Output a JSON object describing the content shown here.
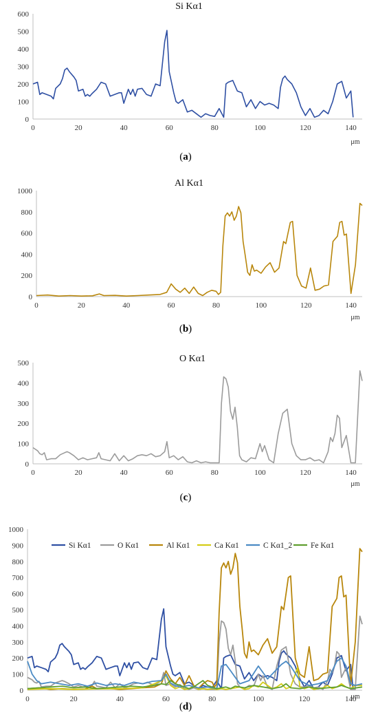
{
  "panels": [
    {
      "caption_letter": "a"
    },
    {
      "caption_letter": "b"
    },
    {
      "caption_letter": "c"
    },
    {
      "caption_letter": "d"
    }
  ],
  "chart_data": [
    {
      "type": "line",
      "title": "Si Kα1",
      "x_unit": "μm",
      "xlim": [
        0,
        145
      ],
      "ylim": [
        0,
        600
      ],
      "xticks": [
        0,
        20,
        40,
        60,
        80,
        100,
        120,
        140
      ],
      "yticks": [
        0,
        100,
        200,
        300,
        400,
        500,
        600
      ],
      "grid": false,
      "series": [
        {
          "color": "#2e4fa3",
          "x": [
            0,
            2,
            3,
            4,
            6,
            8,
            9,
            10,
            12,
            13,
            14,
            15,
            16,
            18,
            19,
            20,
            22,
            23,
            24,
            25,
            26,
            28,
            30,
            32,
            34,
            36,
            38,
            39,
            40,
            42,
            43,
            44,
            45,
            46,
            48,
            50,
            52,
            54,
            56,
            58,
            59,
            60,
            62,
            63,
            64,
            66,
            68,
            70,
            72,
            74,
            76,
            78,
            80,
            82,
            84,
            85,
            86,
            88,
            90,
            92,
            94,
            96,
            98,
            100,
            102,
            104,
            106,
            108,
            109,
            110,
            111,
            112,
            114,
            116,
            118,
            120,
            121,
            122,
            124,
            126,
            128,
            130,
            132,
            134,
            136,
            138,
            140,
            141
          ],
          "y": [
            200,
            210,
            140,
            150,
            140,
            130,
            115,
            175,
            200,
            230,
            280,
            290,
            270,
            240,
            220,
            160,
            170,
            130,
            140,
            130,
            145,
            170,
            210,
            200,
            130,
            140,
            150,
            150,
            90,
            170,
            140,
            170,
            130,
            170,
            175,
            140,
            130,
            200,
            190,
            440,
            505,
            270,
            150,
            100,
            90,
            110,
            40,
            50,
            30,
            10,
            30,
            20,
            15,
            60,
            10,
            200,
            210,
            220,
            160,
            150,
            70,
            110,
            60,
            100,
            80,
            90,
            80,
            60,
            180,
            230,
            245,
            225,
            200,
            150,
            70,
            20,
            40,
            60,
            10,
            20,
            50,
            30,
            100,
            200,
            215,
            120,
            160,
            10
          ]
        }
      ]
    },
    {
      "type": "line",
      "title": "Al Kα1",
      "x_unit": "μm",
      "xlim": [
        0,
        145
      ],
      "ylim": [
        0,
        1000
      ],
      "xticks": [
        0,
        20,
        40,
        60,
        80,
        100,
        120,
        140
      ],
      "yticks": [
        0,
        200,
        400,
        600,
        800,
        1000
      ],
      "grid": false,
      "series": [
        {
          "color": "#b8860b",
          "x": [
            0,
            5,
            10,
            15,
            20,
            25,
            28,
            30,
            35,
            40,
            45,
            50,
            55,
            58,
            60,
            62,
            64,
            66,
            68,
            70,
            72,
            74,
            76,
            78,
            80,
            81,
            82,
            83,
            84,
            85,
            86,
            87,
            88,
            89,
            90,
            91,
            92,
            93,
            94,
            95,
            96,
            97,
            98,
            100,
            102,
            104,
            106,
            108,
            110,
            111,
            112,
            113,
            114,
            116,
            118,
            120,
            122,
            124,
            126,
            128,
            130,
            132,
            134,
            135,
            136,
            137,
            138,
            140,
            142,
            144,
            145
          ],
          "y": [
            10,
            15,
            5,
            10,
            5,
            8,
            25,
            10,
            12,
            5,
            10,
            15,
            20,
            40,
            120,
            70,
            40,
            80,
            30,
            90,
            30,
            10,
            40,
            60,
            50,
            20,
            40,
            480,
            760,
            790,
            760,
            800,
            720,
            760,
            850,
            790,
            520,
            380,
            230,
            200,
            300,
            240,
            250,
            220,
            280,
            320,
            230,
            270,
            520,
            500,
            600,
            700,
            710,
            200,
            100,
            80,
            270,
            60,
            70,
            100,
            110,
            520,
            570,
            700,
            710,
            580,
            590,
            30,
            300,
            880,
            860
          ]
        }
      ]
    },
    {
      "type": "line",
      "title": "O Kα1",
      "x_unit": "μm",
      "xlim": [
        0,
        145
      ],
      "ylim": [
        0,
        500
      ],
      "xticks": [
        0,
        20,
        40,
        60,
        80,
        100,
        120,
        140
      ],
      "yticks": [
        0,
        100,
        200,
        300,
        400,
        500
      ],
      "grid": false,
      "series": [
        {
          "color": "#9b9b9b",
          "x": [
            0,
            2,
            3,
            4,
            5,
            6,
            8,
            10,
            12,
            14,
            15,
            16,
            18,
            20,
            22,
            24,
            26,
            28,
            29,
            30,
            32,
            34,
            36,
            38,
            40,
            42,
            44,
            46,
            48,
            50,
            52,
            54,
            56,
            58,
            59,
            60,
            62,
            64,
            66,
            68,
            70,
            72,
            74,
            76,
            78,
            80,
            82,
            83,
            84,
            85,
            86,
            87,
            88,
            89,
            90,
            91,
            92,
            94,
            96,
            98,
            100,
            101,
            102,
            104,
            106,
            108,
            110,
            111,
            112,
            114,
            116,
            118,
            120,
            122,
            124,
            126,
            128,
            130,
            131,
            132,
            133,
            134,
            135,
            136,
            138,
            140,
            142,
            144,
            145
          ],
          "y": [
            80,
            65,
            50,
            45,
            55,
            20,
            25,
            25,
            45,
            55,
            60,
            55,
            40,
            20,
            30,
            20,
            25,
            30,
            55,
            25,
            20,
            15,
            50,
            15,
            40,
            15,
            25,
            40,
            45,
            40,
            50,
            35,
            40,
            60,
            110,
            30,
            40,
            20,
            35,
            10,
            5,
            15,
            5,
            10,
            5,
            5,
            5,
            300,
            430,
            420,
            380,
            260,
            220,
            280,
            180,
            40,
            20,
            10,
            30,
            25,
            100,
            60,
            90,
            20,
            5,
            150,
            250,
            260,
            270,
            100,
            40,
            20,
            20,
            30,
            15,
            20,
            5,
            60,
            130,
            110,
            150,
            240,
            225,
            80,
            140,
            5,
            5,
            460,
            410
          ]
        }
      ]
    },
    {
      "type": "line",
      "title": "",
      "x_unit": "μm",
      "xlim": [
        0,
        145
      ],
      "ylim": [
        0,
        1000
      ],
      "xticks": [
        0,
        20,
        40,
        60,
        80,
        100,
        120,
        140
      ],
      "yticks": [
        0,
        100,
        200,
        300,
        400,
        500,
        600,
        700,
        800,
        900,
        1000
      ],
      "grid": false,
      "legend": "top",
      "series": [
        {
          "name": "Si Kα1",
          "color": "#2e4fa3",
          "ref": "si"
        },
        {
          "name": "O Kα1",
          "color": "#9b9b9b",
          "ref": "o"
        },
        {
          "name": "Al Kα1",
          "color": "#b8860b",
          "ref": "al"
        },
        {
          "name": "Ca Kα1",
          "color": "#d4cc16",
          "x": [
            0,
            10,
            20,
            30,
            40,
            50,
            55,
            58,
            60,
            62,
            64,
            66,
            68,
            70,
            72,
            74,
            76,
            78,
            80,
            82,
            84,
            86,
            88,
            90,
            92,
            94,
            96,
            98,
            100,
            102,
            104,
            106,
            108,
            110,
            112,
            114,
            116,
            117,
            118,
            120,
            122,
            124,
            126,
            128,
            130,
            132,
            134,
            136,
            138,
            140,
            142,
            145
          ],
          "y": [
            5,
            10,
            5,
            8,
            10,
            15,
            40,
            60,
            90,
            30,
            10,
            20,
            5,
            10,
            25,
            5,
            10,
            5,
            10,
            5,
            10,
            5,
            10,
            15,
            20,
            5,
            10,
            30,
            20,
            50,
            30,
            10,
            20,
            40,
            10,
            20,
            100,
            140,
            20,
            10,
            20,
            5,
            10,
            15,
            30,
            10,
            20,
            40,
            20,
            10,
            30,
            30
          ]
        },
        {
          "name": "C Kα1_2",
          "color": "#4a8ac4",
          "x": [
            0,
            2,
            4,
            6,
            10,
            14,
            18,
            22,
            26,
            30,
            34,
            38,
            42,
            46,
            50,
            54,
            58,
            60,
            62,
            64,
            66,
            70,
            74,
            78,
            82,
            84,
            86,
            88,
            90,
            92,
            96,
            100,
            104,
            108,
            110,
            112,
            114,
            118,
            122,
            126,
            130,
            132,
            134,
            136,
            138,
            140,
            142,
            145
          ],
          "y": [
            180,
            100,
            60,
            40,
            50,
            40,
            30,
            40,
            25,
            45,
            30,
            40,
            30,
            50,
            40,
            55,
            60,
            100,
            45,
            30,
            20,
            30,
            15,
            20,
            10,
            150,
            160,
            120,
            80,
            40,
            60,
            150,
            70,
            130,
            160,
            180,
            150,
            60,
            30,
            40,
            60,
            120,
            180,
            200,
            150,
            40,
            30,
            40
          ]
        },
        {
          "name": "Fe Kα1",
          "color": "#5f9e2f",
          "x": [
            0,
            5,
            10,
            15,
            20,
            25,
            30,
            35,
            40,
            45,
            50,
            55,
            58,
            60,
            62,
            64,
            66,
            68,
            70,
            72,
            74,
            76,
            78,
            80,
            82,
            84,
            86,
            88,
            90,
            94,
            98,
            102,
            106,
            110,
            112,
            114,
            118,
            122,
            126,
            130,
            134,
            136,
            140,
            145
          ],
          "y": [
            10,
            15,
            20,
            25,
            15,
            20,
            10,
            15,
            20,
            25,
            20,
            30,
            40,
            35,
            60,
            40,
            30,
            20,
            10,
            20,
            40,
            60,
            30,
            20,
            10,
            15,
            20,
            10,
            25,
            15,
            30,
            20,
            10,
            20,
            40,
            15,
            10,
            20,
            10,
            15,
            20,
            30,
            10,
            20
          ]
        }
      ]
    }
  ]
}
